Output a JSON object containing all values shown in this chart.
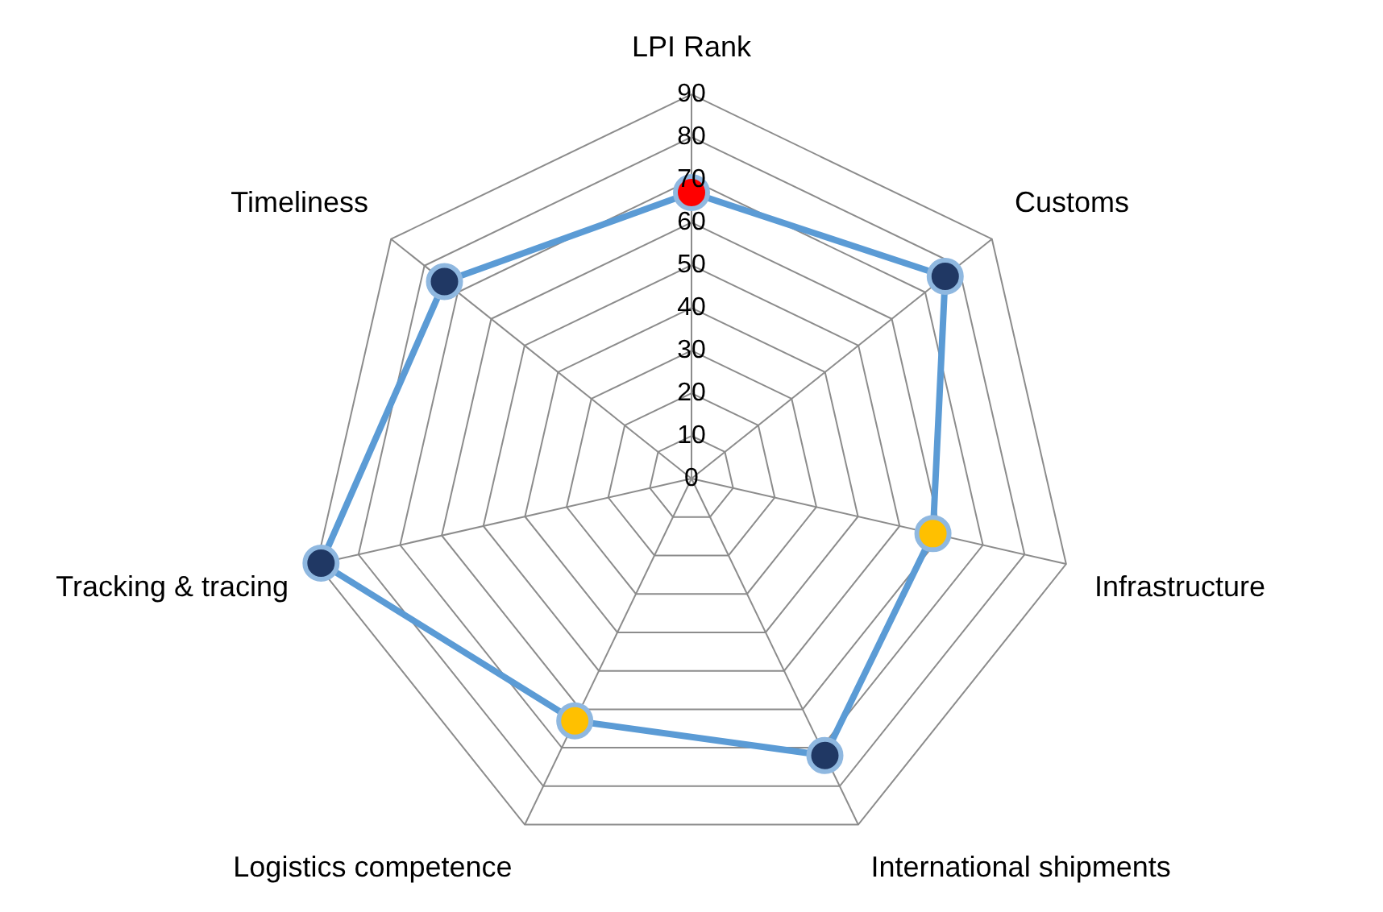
{
  "chart_data": {
    "type": "radar",
    "categories": [
      "LPI Rank",
      "Customs",
      "Infrastructure",
      "International shipments",
      "Logistics competence",
      "Tracking & tracing",
      "Timeliness"
    ],
    "series": [
      {
        "color": "#5b9bd5",
        "values": [
          67,
          76,
          58,
          72,
          63,
          89,
          74
        ],
        "colors": [
          "#ff0000",
          "#203864",
          "#ffc000",
          "#203864",
          "#ffc000",
          "#203864",
          "#203864"
        ]
      }
    ],
    "ylim": [
      0,
      90
    ],
    "yticks": [
      0,
      10,
      20,
      30,
      40,
      50,
      60,
      70,
      80,
      90
    ],
    "grid": true,
    "legend": false,
    "marker": "circle"
  }
}
